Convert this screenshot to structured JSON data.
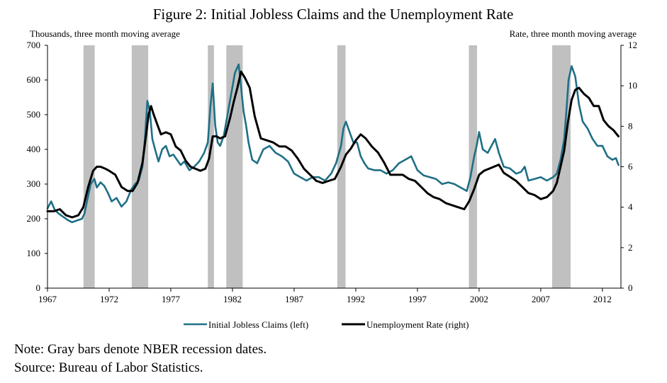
{
  "chart_data": {
    "type": "line",
    "title": "Figure 2: Initial Jobless Claims and the Unemployment Rate",
    "left_axis_label": "Thousands, three month moving average",
    "right_axis_label": "Rate, three month moving average",
    "xlim": [
      1967,
      2013.5
    ],
    "ylim_left": [
      0,
      700
    ],
    "ylim_right": [
      0,
      12
    ],
    "x_ticks": [
      "1967",
      "1972",
      "1977",
      "1982",
      "1987",
      "1992",
      "1997",
      "2002",
      "2007",
      "2012"
    ],
    "y_ticks_left": [
      "0",
      "100",
      "200",
      "300",
      "400",
      "500",
      "600",
      "700"
    ],
    "y_ticks_right": [
      "0",
      "2",
      "4",
      "6",
      "8",
      "10",
      "12"
    ],
    "grid": false,
    "legend_position": "bottom",
    "recessions": [
      [
        1969.92,
        1970.83
      ],
      [
        1973.83,
        1975.17
      ],
      [
        1980.0,
        1980.5
      ],
      [
        1981.5,
        1982.83
      ],
      [
        1990.5,
        1991.17
      ],
      [
        2001.17,
        2001.83
      ],
      [
        2007.92,
        2009.42
      ]
    ],
    "recession_color": "#c0c0c0",
    "series": [
      {
        "name": "Initial Jobless Claims (left)",
        "axis": "left",
        "color": "#1f6f86",
        "x": [
          1967.0,
          1967.3,
          1967.6,
          1967.9,
          1968.3,
          1968.7,
          1969.0,
          1969.4,
          1969.8,
          1970.0,
          1970.2,
          1970.5,
          1970.8,
          1971.0,
          1971.3,
          1971.6,
          1971.9,
          1972.2,
          1972.6,
          1973.0,
          1973.4,
          1973.8,
          1974.1,
          1974.4,
          1974.7,
          1974.9,
          1975.1,
          1975.3,
          1975.5,
          1975.8,
          1976.0,
          1976.3,
          1976.6,
          1976.9,
          1977.2,
          1977.5,
          1977.8,
          1978.1,
          1978.5,
          1978.9,
          1979.3,
          1979.7,
          1980.0,
          1980.2,
          1980.4,
          1980.6,
          1980.8,
          1981.0,
          1981.3,
          1981.6,
          1981.9,
          1982.2,
          1982.5,
          1982.7,
          1982.9,
          1983.1,
          1983.3,
          1983.6,
          1984.0,
          1984.5,
          1985.0,
          1985.5,
          1986.0,
          1986.5,
          1987.0,
          1987.5,
          1988.0,
          1988.5,
          1989.0,
          1989.5,
          1990.0,
          1990.4,
          1990.8,
          1991.0,
          1991.2,
          1991.5,
          1991.8,
          1992.1,
          1992.4,
          1992.7,
          1993.0,
          1993.5,
          1994.0,
          1994.5,
          1995.0,
          1995.5,
          1996.0,
          1996.5,
          1997.0,
          1997.5,
          1998.0,
          1998.5,
          1999.0,
          1999.5,
          2000.0,
          2000.5,
          2001.0,
          2001.3,
          2001.6,
          2001.8,
          2002.0,
          2002.3,
          2002.7,
          2003.0,
          2003.3,
          2003.6,
          2004.0,
          2004.5,
          2005.0,
          2005.4,
          2005.7,
          2006.0,
          2006.5,
          2007.0,
          2007.5,
          2008.0,
          2008.3,
          2008.6,
          2008.9,
          2009.1,
          2009.25,
          2009.5,
          2009.8,
          2010.1,
          2010.4,
          2010.8,
          2011.2,
          2011.6,
          2012.0,
          2012.4,
          2012.8,
          2013.1,
          2013.3
        ],
        "values": [
          230,
          250,
          225,
          215,
          205,
          195,
          190,
          195,
          200,
          215,
          250,
          300,
          315,
          290,
          305,
          295,
          275,
          250,
          260,
          235,
          250,
          285,
          300,
          310,
          350,
          430,
          540,
          510,
          430,
          390,
          365,
          400,
          410,
          380,
          385,
          370,
          355,
          365,
          340,
          350,
          365,
          390,
          420,
          520,
          590,
          470,
          420,
          410,
          440,
          500,
          560,
          620,
          645,
          580,
          510,
          470,
          420,
          370,
          360,
          400,
          410,
          390,
          380,
          365,
          330,
          320,
          310,
          320,
          320,
          310,
          330,
          360,
          410,
          460,
          480,
          450,
          420,
          420,
          380,
          360,
          345,
          340,
          340,
          330,
          340,
          360,
          370,
          380,
          340,
          325,
          320,
          315,
          300,
          305,
          300,
          290,
          280,
          320,
          380,
          410,
          450,
          400,
          390,
          410,
          430,
          390,
          350,
          345,
          330,
          335,
          350,
          310,
          315,
          320,
          310,
          320,
          330,
          370,
          430,
          520,
          600,
          640,
          610,
          530,
          480,
          460,
          430,
          410,
          410,
          380,
          370,
          375,
          355
        ]
      },
      {
        "name": "Unemployment Rate (right)",
        "axis": "right",
        "color": "#000000",
        "x": [
          1967.0,
          1967.5,
          1968.0,
          1968.5,
          1969.0,
          1969.5,
          1969.9,
          1970.3,
          1970.7,
          1971.0,
          1971.3,
          1971.7,
          1972.0,
          1972.5,
          1973.0,
          1973.5,
          1973.9,
          1974.3,
          1974.7,
          1975.0,
          1975.2,
          1975.4,
          1975.6,
          1975.9,
          1976.2,
          1976.6,
          1977.0,
          1977.4,
          1977.8,
          1978.2,
          1978.6,
          1979.0,
          1979.4,
          1979.8,
          1980.1,
          1980.4,
          1980.7,
          1981.0,
          1981.4,
          1981.8,
          1982.1,
          1982.4,
          1982.7,
          1983.0,
          1983.4,
          1983.8,
          1984.3,
          1984.8,
          1985.3,
          1985.8,
          1986.3,
          1986.8,
          1987.3,
          1987.8,
          1988.3,
          1988.8,
          1989.3,
          1989.8,
          1990.3,
          1990.8,
          1991.2,
          1991.6,
          1992.0,
          1992.4,
          1992.8,
          1993.3,
          1993.8,
          1994.3,
          1994.8,
          1995.3,
          1995.8,
          1996.3,
          1996.8,
          1997.3,
          1997.8,
          1998.3,
          1998.8,
          1999.3,
          1999.8,
          2000.3,
          2000.8,
          2001.2,
          2001.6,
          2002.0,
          2002.4,
          2002.8,
          2003.2,
          2003.6,
          2004.0,
          2004.5,
          2005.0,
          2005.5,
          2006.0,
          2006.5,
          2007.0,
          2007.5,
          2008.0,
          2008.3,
          2008.6,
          2008.9,
          2009.2,
          2009.5,
          2009.8,
          2010.1,
          2010.5,
          2010.9,
          2011.3,
          2011.7,
          2012.1,
          2012.5,
          2012.9,
          2013.3
        ],
        "values": [
          3.8,
          3.8,
          3.9,
          3.6,
          3.5,
          3.6,
          4.0,
          5.0,
          5.8,
          6.0,
          6.0,
          5.9,
          5.8,
          5.6,
          5.0,
          4.8,
          4.8,
          5.2,
          6.2,
          7.6,
          8.6,
          9.0,
          8.6,
          8.1,
          7.6,
          7.7,
          7.6,
          7.0,
          6.8,
          6.3,
          6.0,
          5.9,
          5.8,
          5.9,
          6.4,
          7.5,
          7.5,
          7.4,
          7.5,
          8.4,
          9.2,
          9.9,
          10.7,
          10.4,
          9.9,
          8.5,
          7.4,
          7.3,
          7.2,
          7.0,
          7.0,
          6.8,
          6.4,
          5.9,
          5.6,
          5.3,
          5.2,
          5.3,
          5.4,
          6.0,
          6.6,
          6.9,
          7.3,
          7.6,
          7.4,
          7.0,
          6.7,
          6.2,
          5.6,
          5.6,
          5.6,
          5.4,
          5.3,
          5.0,
          4.7,
          4.5,
          4.4,
          4.2,
          4.1,
          4.0,
          3.9,
          4.3,
          4.9,
          5.6,
          5.8,
          5.9,
          6.0,
          6.1,
          5.7,
          5.5,
          5.3,
          5.0,
          4.7,
          4.6,
          4.4,
          4.5,
          4.8,
          5.2,
          6.0,
          6.8,
          8.2,
          9.3,
          9.8,
          9.9,
          9.6,
          9.4,
          9.0,
          9.0,
          8.3,
          8.0,
          7.8,
          7.5
        ]
      }
    ]
  },
  "notes": {
    "line1": "Note: Gray bars denote NBER recession dates.",
    "line2": "Source: Bureau of Labor Statistics."
  }
}
